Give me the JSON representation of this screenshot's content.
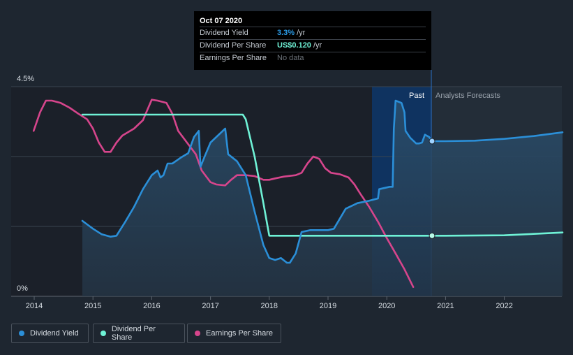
{
  "chart_data": {
    "type": "line",
    "x_ticks": [
      "2014",
      "2015",
      "2016",
      "2017",
      "2018",
      "2019",
      "2020",
      "2021",
      "2022"
    ],
    "y_labels": {
      "top": "4.5%",
      "bottom": "0%"
    },
    "ylim_pct": [
      0,
      4.5
    ],
    "regions": {
      "past": "Past",
      "forecast": "Analysts Forecasts"
    },
    "tooltip": {
      "date": "Oct 07 2020",
      "rows": [
        {
          "label": "Dividend Yield",
          "value": "3.3%",
          "unit": "/yr"
        },
        {
          "label": "Dividend Per Share",
          "value": "US$0.120",
          "unit": "/yr"
        },
        {
          "label": "Earnings Per Share",
          "value": "No data",
          "unit": ""
        }
      ]
    },
    "series": [
      {
        "name": "Dividend Yield",
        "color": "#2b8fd8",
        "points": [
          [
            2014.82,
            1.62
          ],
          [
            2015.0,
            1.45
          ],
          [
            2015.15,
            1.33
          ],
          [
            2015.3,
            1.28
          ],
          [
            2015.4,
            1.3
          ],
          [
            2015.55,
            1.6
          ],
          [
            2015.7,
            1.92
          ],
          [
            2015.85,
            2.3
          ],
          [
            2016.0,
            2.6
          ],
          [
            2016.1,
            2.7
          ],
          [
            2016.15,
            2.55
          ],
          [
            2016.2,
            2.6
          ],
          [
            2016.27,
            2.85
          ],
          [
            2016.35,
            2.85
          ],
          [
            2016.5,
            2.98
          ],
          [
            2016.62,
            3.07
          ],
          [
            2016.72,
            3.42
          ],
          [
            2016.8,
            3.55
          ],
          [
            2016.83,
            2.78
          ],
          [
            2016.9,
            3.0
          ],
          [
            2017.0,
            3.3
          ],
          [
            2017.1,
            3.42
          ],
          [
            2017.25,
            3.6
          ],
          [
            2017.3,
            3.05
          ],
          [
            2017.45,
            2.9
          ],
          [
            2017.6,
            2.6
          ],
          [
            2017.75,
            1.82
          ],
          [
            2017.9,
            1.1
          ],
          [
            2018.0,
            0.82
          ],
          [
            2018.1,
            0.78
          ],
          [
            2018.2,
            0.82
          ],
          [
            2018.3,
            0.72
          ],
          [
            2018.35,
            0.72
          ],
          [
            2018.45,
            0.92
          ],
          [
            2018.55,
            1.38
          ],
          [
            2018.7,
            1.42
          ],
          [
            2019.0,
            1.42
          ],
          [
            2019.1,
            1.45
          ],
          [
            2019.3,
            1.88
          ],
          [
            2019.5,
            2.0
          ],
          [
            2019.7,
            2.05
          ],
          [
            2019.85,
            2.1
          ],
          [
            2019.87,
            2.3
          ],
          [
            2020.05,
            2.35
          ],
          [
            2020.08,
            2.35
          ],
          [
            2020.1,
            2.35
          ],
          [
            2020.12,
            3.6
          ],
          [
            2020.15,
            4.2
          ],
          [
            2020.25,
            4.15
          ],
          [
            2020.3,
            3.95
          ],
          [
            2020.32,
            3.55
          ],
          [
            2020.4,
            3.4
          ],
          [
            2020.5,
            3.28
          ],
          [
            2020.55,
            3.28
          ],
          [
            2020.6,
            3.3
          ],
          [
            2020.65,
            3.47
          ],
          [
            2020.72,
            3.42
          ],
          [
            2020.77,
            3.33
          ],
          [
            2020.8,
            3.33
          ],
          [
            2021.0,
            3.33
          ],
          [
            2021.5,
            3.34
          ],
          [
            2022.0,
            3.38
          ],
          [
            2022.5,
            3.44
          ],
          [
            2022.99,
            3.52
          ]
        ],
        "forecast_from": 2020.77
      },
      {
        "name": "Dividend Per Share",
        "color": "#6ff2d6",
        "points": [
          [
            2014.82,
            3.9
          ],
          [
            2017.55,
            3.9
          ],
          [
            2017.6,
            3.8
          ],
          [
            2017.75,
            3.0
          ],
          [
            2017.9,
            2.0
          ],
          [
            2018.0,
            1.3
          ],
          [
            2018.1,
            1.3
          ],
          [
            2020.0,
            1.3
          ],
          [
            2020.77,
            1.3
          ],
          [
            2021.0,
            1.3
          ],
          [
            2022.0,
            1.31
          ],
          [
            2022.5,
            1.34
          ],
          [
            2022.99,
            1.37
          ]
        ],
        "forecast_from": 2020.77
      },
      {
        "name": "Earnings Per Share",
        "color": "#d6458c",
        "points": [
          [
            2013.99,
            3.55
          ],
          [
            2014.1,
            3.95
          ],
          [
            2014.2,
            4.2
          ],
          [
            2014.3,
            4.2
          ],
          [
            2014.45,
            4.15
          ],
          [
            2014.6,
            4.05
          ],
          [
            2014.75,
            3.92
          ],
          [
            2014.9,
            3.8
          ],
          [
            2015.0,
            3.6
          ],
          [
            2015.1,
            3.3
          ],
          [
            2015.2,
            3.1
          ],
          [
            2015.3,
            3.1
          ],
          [
            2015.4,
            3.3
          ],
          [
            2015.5,
            3.45
          ],
          [
            2015.7,
            3.6
          ],
          [
            2015.85,
            3.78
          ],
          [
            2016.0,
            4.22
          ],
          [
            2016.1,
            4.2
          ],
          [
            2016.25,
            4.15
          ],
          [
            2016.35,
            3.92
          ],
          [
            2016.45,
            3.55
          ],
          [
            2016.6,
            3.3
          ],
          [
            2016.75,
            3.05
          ],
          [
            2016.85,
            2.7
          ],
          [
            2017.0,
            2.45
          ],
          [
            2017.1,
            2.4
          ],
          [
            2017.25,
            2.38
          ],
          [
            2017.35,
            2.5
          ],
          [
            2017.45,
            2.6
          ],
          [
            2017.6,
            2.6
          ],
          [
            2017.75,
            2.58
          ],
          [
            2017.9,
            2.5
          ],
          [
            2018.0,
            2.5
          ],
          [
            2018.1,
            2.53
          ],
          [
            2018.25,
            2.57
          ],
          [
            2018.45,
            2.6
          ],
          [
            2018.55,
            2.65
          ],
          [
            2018.65,
            2.85
          ],
          [
            2018.75,
            3.0
          ],
          [
            2018.85,
            2.95
          ],
          [
            2018.95,
            2.75
          ],
          [
            2019.05,
            2.65
          ],
          [
            2019.2,
            2.62
          ],
          [
            2019.35,
            2.55
          ],
          [
            2019.45,
            2.4
          ],
          [
            2019.55,
            2.2
          ],
          [
            2019.7,
            1.92
          ],
          [
            2019.85,
            1.6
          ],
          [
            2020.0,
            1.25
          ],
          [
            2020.15,
            0.92
          ],
          [
            2020.3,
            0.58
          ],
          [
            2020.45,
            0.2
          ]
        ]
      }
    ]
  },
  "legend": [
    {
      "label": "Dividend Yield",
      "color": "#2b8fd8"
    },
    {
      "label": "Dividend Per Share",
      "color": "#6ff2d6"
    },
    {
      "label": "Earnings Per Share",
      "color": "#d6458c"
    }
  ]
}
